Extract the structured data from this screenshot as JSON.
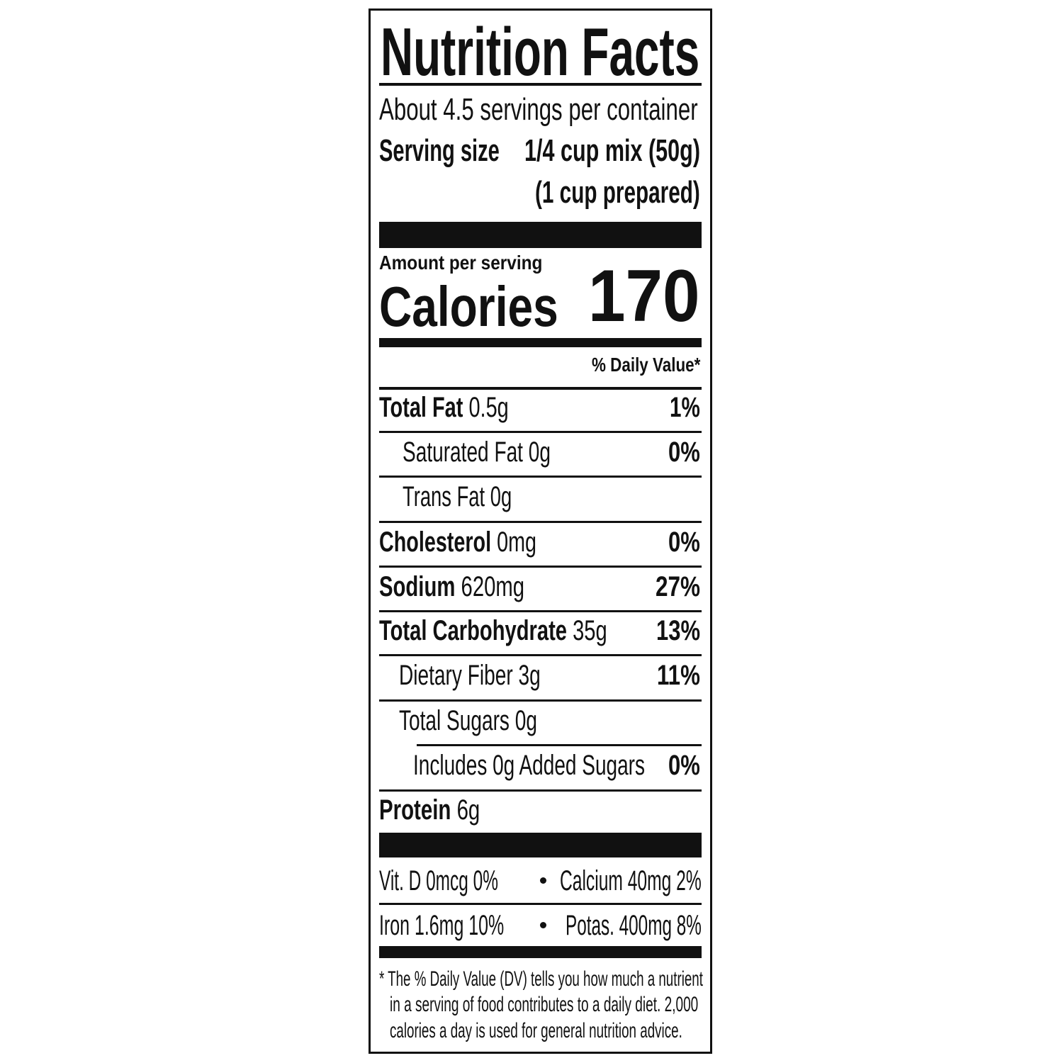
{
  "title": "Nutrition Facts",
  "servings_per_container": "About 4.5 servings per container",
  "serving_size": {
    "label": "Serving size",
    "value": "1/4 cup mix (50g)",
    "prepared": "(1 cup prepared)"
  },
  "amount_per_serving": "Amount per serving",
  "calories": {
    "label": "Calories",
    "value": "170"
  },
  "daily_value_header": "% Daily Value*",
  "nutrients": [
    {
      "name": "Total Fat",
      "amount": "0.5g",
      "dv": "1%"
    },
    {
      "name": "Saturated Fat",
      "amount": "0g",
      "dv": "0%"
    },
    {
      "name": "Trans Fat",
      "amount": "0g",
      "dv": ""
    },
    {
      "name": "Cholesterol",
      "amount": "0mg",
      "dv": "0%"
    },
    {
      "name": "Sodium",
      "amount": "620mg",
      "dv": "27%"
    },
    {
      "name": "Total Carbohydrate",
      "amount": "35g",
      "dv": "13%"
    },
    {
      "name": "Dietary Fiber",
      "amount": "3g",
      "dv": "11%"
    },
    {
      "name": "Total Sugars",
      "amount": "0g",
      "dv": ""
    },
    {
      "name": "Includes 0g Added Sugars",
      "amount": "",
      "dv": "0%"
    },
    {
      "name": "Protein",
      "amount": "6g",
      "dv": ""
    }
  ],
  "micronutrients": [
    {
      "text": "Vit. D 0mcg 0%"
    },
    {
      "text": "Calcium 40mg 2%"
    },
    {
      "text": "Iron 1.6mg 10%"
    },
    {
      "text": "Potas. 400mg 8%"
    }
  ],
  "footnote": [
    "* The % Daily Value (DV) tells you how much a nutrient",
    "in a serving of food contributes to a daily diet. 2,000",
    "calories a day is used for general nutrition advice."
  ]
}
